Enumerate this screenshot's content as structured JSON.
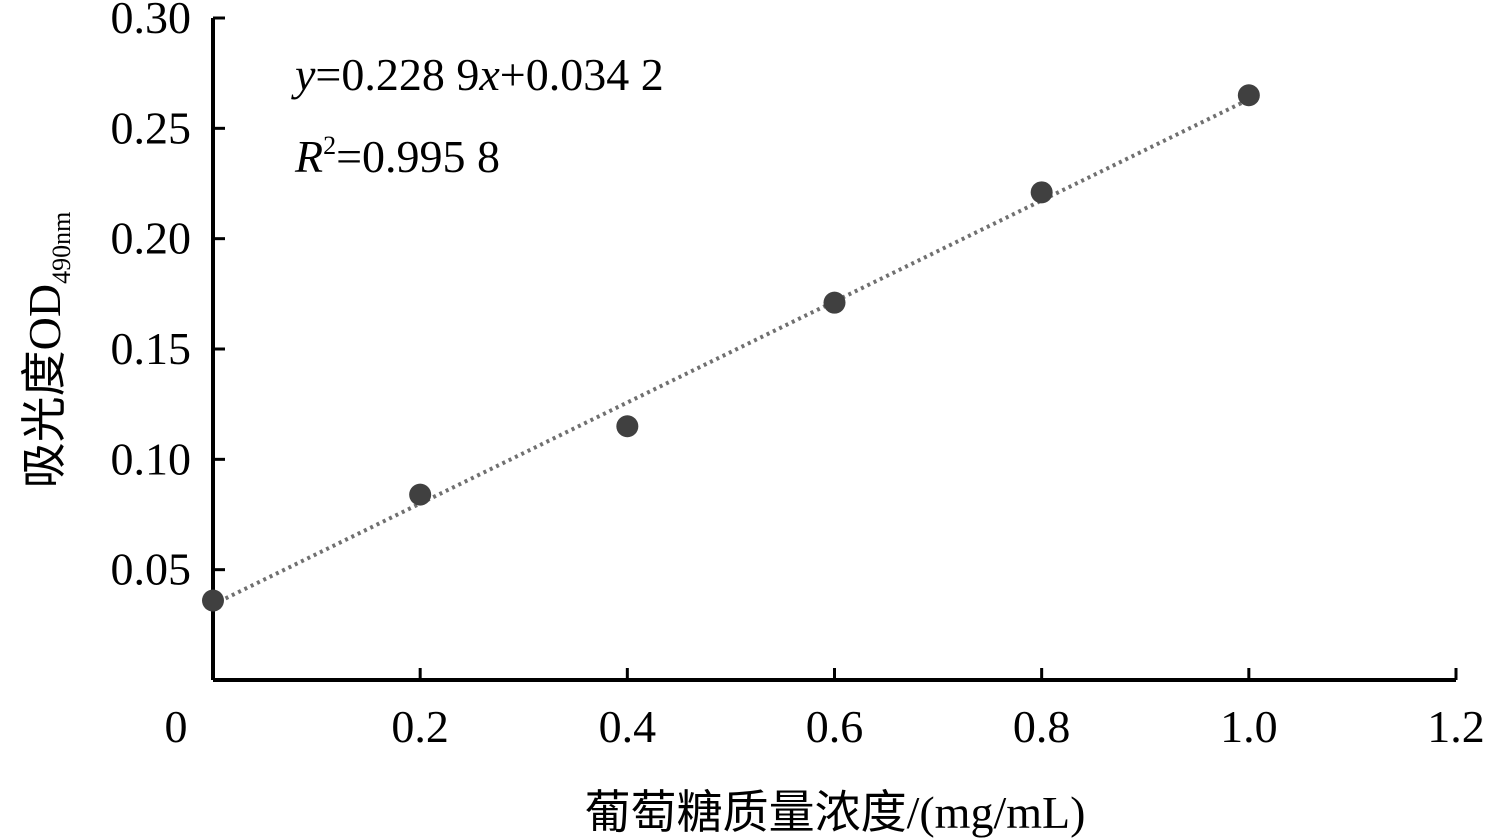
{
  "chart_data": {
    "type": "scatter",
    "title": "",
    "xlabel": "葡萄糖质量浓度/(mg/mL)",
    "ylabel": {
      "main": "吸光度OD",
      "subscript": "490nm"
    },
    "xlim": [
      0,
      1.2
    ],
    "ylim": [
      0,
      0.3
    ],
    "x_ticks": [
      "0",
      "0.2",
      "0.4",
      "0.6",
      "0.8",
      "1.0",
      "1.2"
    ],
    "y_ticks": [
      "0.05",
      "0.10",
      "0.15",
      "0.20",
      "0.25",
      "0.30"
    ],
    "grid": false,
    "legend": "none",
    "points": [
      {
        "x": 0.0,
        "y": 0.036
      },
      {
        "x": 0.2,
        "y": 0.084
      },
      {
        "x": 0.4,
        "y": 0.115
      },
      {
        "x": 0.6,
        "y": 0.171
      },
      {
        "x": 0.8,
        "y": 0.221
      },
      {
        "x": 1.0,
        "y": 0.265
      }
    ],
    "trendline": {
      "type": "linear",
      "slope": 0.2289,
      "intercept": 0.0342,
      "x_range": [
        0,
        1.0
      ],
      "style": "dotted"
    },
    "annotations": {
      "equation": {
        "y_var": "y",
        "eq_middle": "=0.228 9",
        "x_var": "x",
        "eq_tail": "+0.034 2"
      },
      "r_squared": {
        "r_var": "R",
        "power": "2",
        "value": "=0.995 8"
      }
    },
    "colors": {
      "marker": "#404040",
      "trendline": "#707070",
      "axis": "#000000"
    }
  }
}
